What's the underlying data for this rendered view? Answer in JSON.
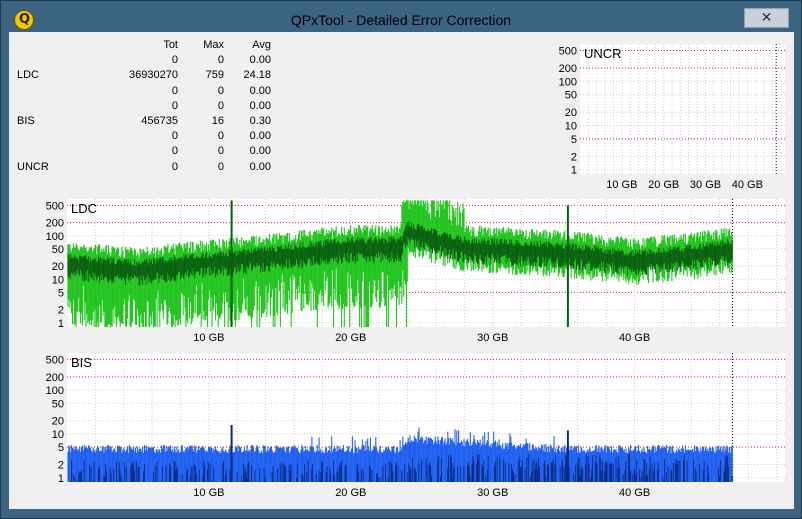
{
  "window": {
    "title": "QPxTool - Detailed Error Correction",
    "icon": "qpxtool-q-icon",
    "close_label": "✕"
  },
  "stats": {
    "headers": [
      "",
      "Tot",
      "Max",
      "Avg"
    ],
    "rows": [
      [
        "",
        "0",
        "0",
        "0.00"
      ],
      [
        "LDC",
        "36930270",
        "759",
        "24.18"
      ],
      [
        "",
        "0",
        "0",
        "0.00"
      ],
      [
        "",
        "0",
        "0",
        "0.00"
      ],
      [
        "BIS",
        "456735",
        "16",
        "0.30"
      ],
      [
        "",
        "0",
        "0",
        "0.00"
      ],
      [
        "",
        "0",
        "0",
        "0.00"
      ],
      [
        "UNCR",
        "0",
        "0",
        "0.00"
      ]
    ]
  },
  "colors": {
    "ldc_light": "#22c41e",
    "ldc_dark": "#0a5a10",
    "bis_light": "#2060f0",
    "bis_dark": "#0a2a80",
    "gridline": "#cccccc",
    "redline": "#cc2222"
  },
  "chart_data": [
    {
      "type": "area",
      "title": "UNCR",
      "y_scale": "log",
      "yticks": [
        "500",
        "200",
        "100",
        "50",
        "20",
        "10",
        "5",
        "2",
        "1"
      ],
      "xticks": [
        "10 GB",
        "20 GB",
        "30 GB",
        "40 GB"
      ],
      "x_range_gb": [
        0,
        47
      ],
      "series": []
    },
    {
      "type": "area",
      "title": "LDC",
      "y_scale": "log",
      "yticks": [
        "500",
        "200",
        "100",
        "50",
        "20",
        "10",
        "5",
        "2",
        "1"
      ],
      "xticks": [
        "10 GB",
        "20 GB",
        "30 GB",
        "40 GB"
      ],
      "x_range_gb": [
        0,
        47
      ],
      "series": [
        {
          "x": [
            0,
            5,
            10,
            11.5,
            15,
            20,
            23.5,
            24,
            28,
            35,
            40,
            44,
            46.9
          ],
          "values": [
            25,
            18,
            28,
            30,
            40,
            60,
            60,
            140,
            60,
            45,
            30,
            40,
            55
          ]
        }
      ]
    },
    {
      "type": "area",
      "title": "BIS",
      "y_scale": "log",
      "yticks": [
        "500",
        "200",
        "100",
        "50",
        "20",
        "10",
        "5",
        "2",
        "1"
      ],
      "xticks": [
        "10 GB",
        "20 GB",
        "30 GB",
        "40 GB"
      ],
      "x_range_gb": [
        0,
        47
      ],
      "series": [
        {
          "x": [
            0,
            11.5,
            23.5,
            24,
            35,
            46.9
          ],
          "values": [
            4,
            4,
            4,
            7,
            4,
            4
          ]
        }
      ]
    }
  ]
}
